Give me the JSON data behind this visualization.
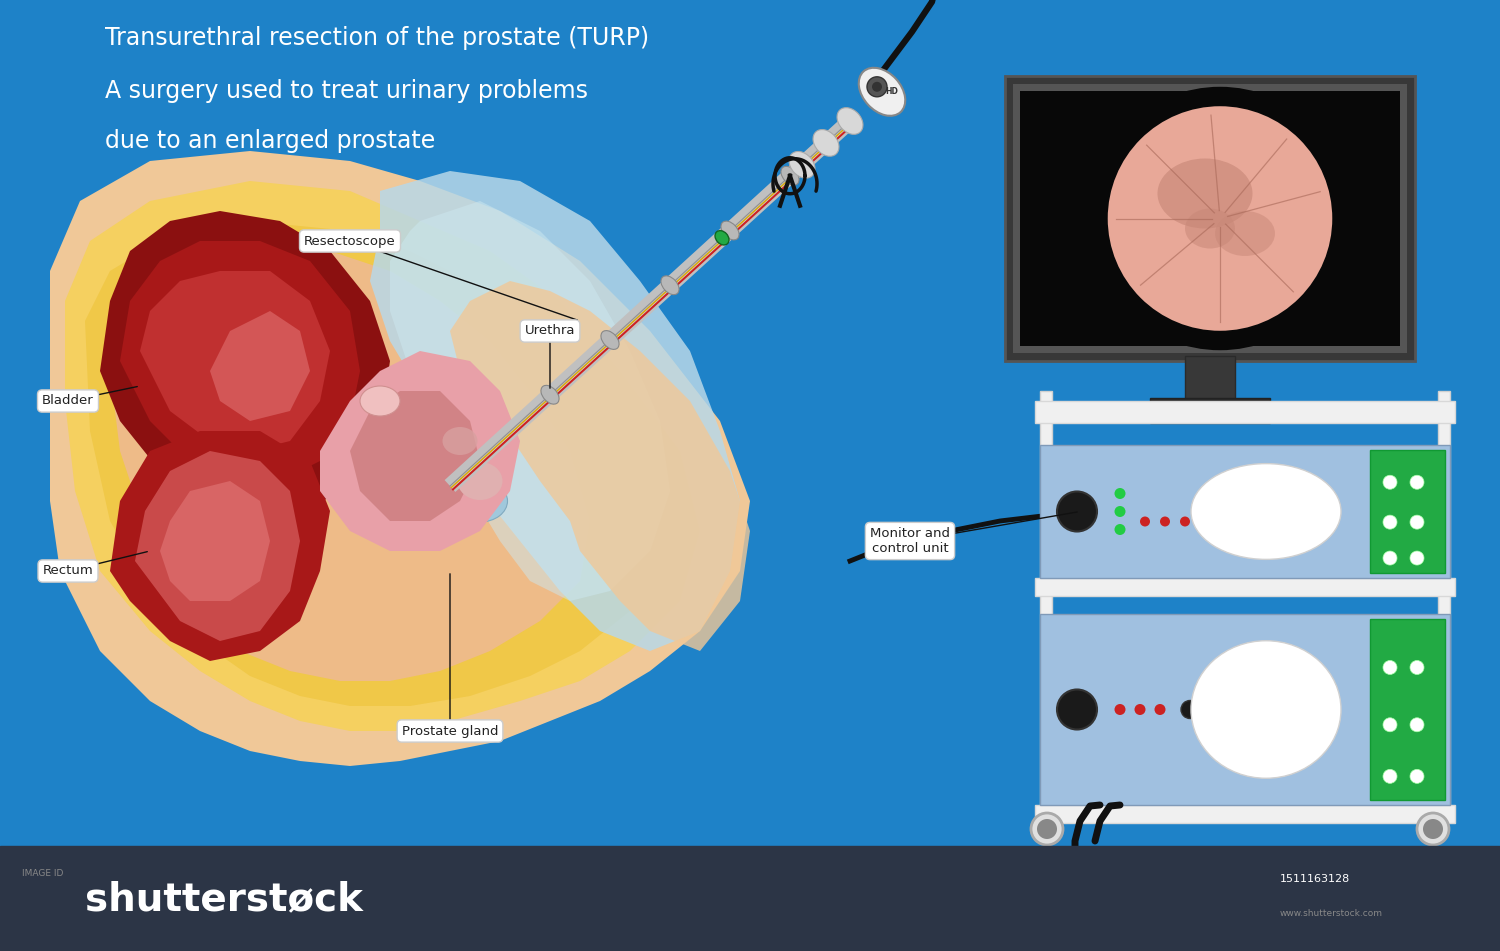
{
  "bg_color": "#1e82c8",
  "title_line1": "Transurethral resection of the prostate (TURP)",
  "title_line2": "A surgery used to treat urinary problems",
  "title_line3": "due to an enlarged prostate",
  "title_color": "white",
  "title_fontsize": 17,
  "label_bladder": "Bladder",
  "label_rectum": "Rectum",
  "label_resectoscope": "Resectoscope",
  "label_urethra": "Urethra",
  "label_prostate": "Prostate gland",
  "label_monitor": "Monitor and\ncontrol unit",
  "bottom_bar_color": "#2c3546",
  "skin_outer": "#f0c898",
  "skin_mid": "#eebb88",
  "skin_inner": "#e8a870",
  "fat_yellow": "#f5d060",
  "fat_yellow2": "#f0c848",
  "bladder_dark": "#8b1010",
  "bladder_mid": "#a81818",
  "bladder_light": "#cc3030",
  "bladder_inner_pink": "#e06060",
  "prostate_pink": "#e8a0a8",
  "prostate_dark": "#c87878",
  "rectum_dark": "#a81818",
  "rectum_pink": "#d86060",
  "urethra_blue": "#c0dce8",
  "urethra_blue2": "#a8ccd8",
  "instrument_silver": "#c8c8c8",
  "instrument_dark": "#888888",
  "instrument_green": "#22aa44",
  "monitor_frame": "#2a2a2a",
  "screen_black": "#050505",
  "tissue_pink": "#e8a898",
  "tissue_dark": "#c88878",
  "equip_blue": "#a0c0e0",
  "equip_border": "#809ab8",
  "equip_green": "#22aa44",
  "cart_white": "#f0f0f0",
  "cart_gray": "#d8d8d8"
}
